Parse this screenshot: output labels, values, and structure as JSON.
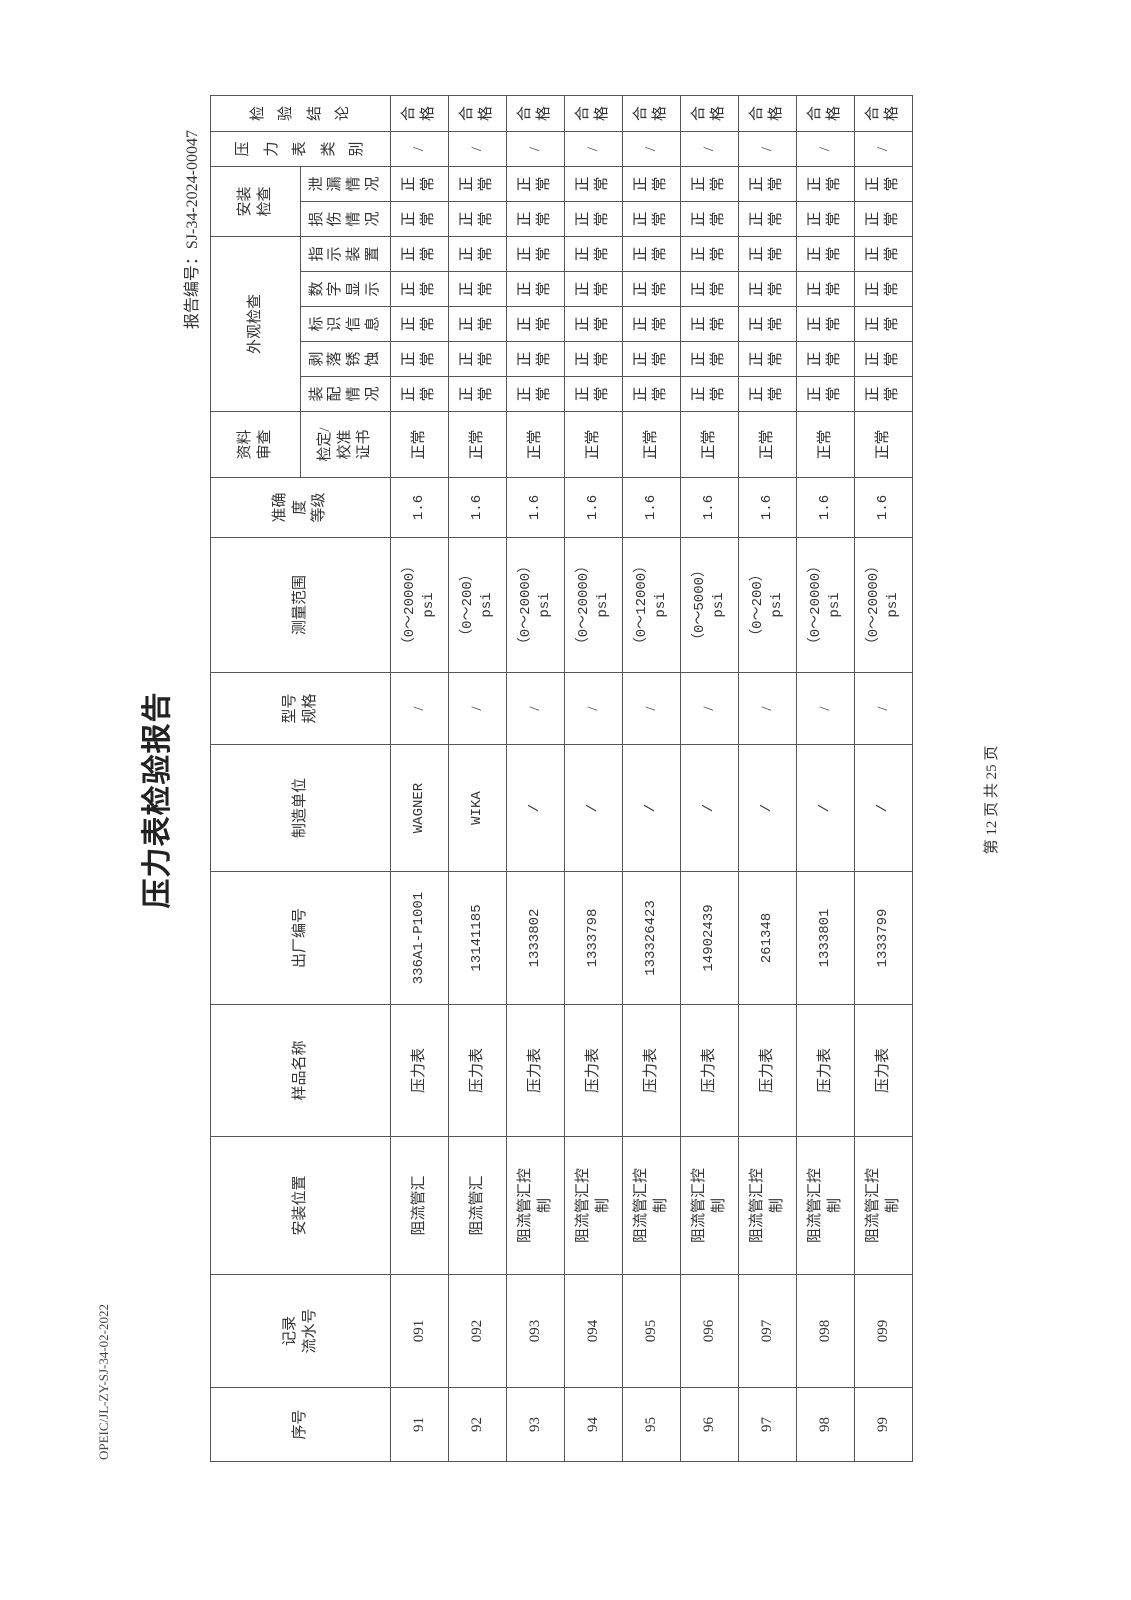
{
  "form_code": "OPEIC/JL-ZY-SJ-34-02-2022",
  "title": "压力表检验报告",
  "report_number": "报告编号：SJ-34-2024-00047",
  "footer": "第 12 页 共 25 页",
  "table": {
    "headers": {
      "seq": "序号",
      "record_no": "记录\n流水号",
      "install_location": "安装位置",
      "sample_name": "样品名称",
      "serial_no": "出厂编号",
      "manufacturer": "制造单位",
      "model": "型号\n规格",
      "range": "测量范围",
      "accuracy": "准确\n度\n等级",
      "doc_review": "资料\n审查",
      "doc_review_sub": "检定/\n校准\n证书",
      "appearance": "外观检查",
      "appearance_sub": [
        "装配情况",
        "剥落锈蚀",
        "标识信息",
        "数字显示",
        "指示装置"
      ],
      "install_check": "安装\n检查",
      "install_check_sub": [
        "损伤情况",
        "泄漏情况"
      ],
      "gauge_type": "压力表类别",
      "conclusion": "检验结论"
    },
    "rows": [
      {
        "seq": "91",
        "record_no": "091",
        "location": "阻流管汇",
        "name": "压力表",
        "serial": "336A1-P1001",
        "maker": "WAGNER",
        "model": "/",
        "range": "（0～20000）\npsi",
        "accuracy": "1.6",
        "doc": "正常",
        "app": [
          "正常",
          "正常",
          "正常",
          "正常",
          "正常"
        ],
        "inst": [
          "正常",
          "正常"
        ],
        "type": "/",
        "result": "合格"
      },
      {
        "seq": "92",
        "record_no": "092",
        "location": "阻流管汇",
        "name": "压力表",
        "serial": "13141185",
        "maker": "WIKA",
        "model": "/",
        "range": "（0～200）\npsi",
        "accuracy": "1.6",
        "doc": "正常",
        "app": [
          "正常",
          "正常",
          "正常",
          "正常",
          "正常"
        ],
        "inst": [
          "正常",
          "正常"
        ],
        "type": "/",
        "result": "合格"
      },
      {
        "seq": "93",
        "record_no": "093",
        "location": "阻流管汇控制",
        "name": "压力表",
        "serial": "1333802",
        "maker": "/",
        "model": "/",
        "range": "（0～20000）\npsi",
        "accuracy": "1.6",
        "doc": "正常",
        "app": [
          "正常",
          "正常",
          "正常",
          "正常",
          "正常"
        ],
        "inst": [
          "正常",
          "正常"
        ],
        "type": "/",
        "result": "合格"
      },
      {
        "seq": "94",
        "record_no": "094",
        "location": "阻流管汇控制",
        "name": "压力表",
        "serial": "1333798",
        "maker": "/",
        "model": "/",
        "range": "（0～20000）\npsi",
        "accuracy": "1.6",
        "doc": "正常",
        "app": [
          "正常",
          "正常",
          "正常",
          "正常",
          "正常"
        ],
        "inst": [
          "正常",
          "正常"
        ],
        "type": "/",
        "result": "合格"
      },
      {
        "seq": "95",
        "record_no": "095",
        "location": "阻流管汇控制",
        "name": "压力表",
        "serial": "133326423",
        "maker": "/",
        "model": "/",
        "range": "（0～12000）\npsi",
        "accuracy": "1.6",
        "doc": "正常",
        "app": [
          "正常",
          "正常",
          "正常",
          "正常",
          "正常"
        ],
        "inst": [
          "正常",
          "正常"
        ],
        "type": "/",
        "result": "合格"
      },
      {
        "seq": "96",
        "record_no": "096",
        "location": "阻流管汇控制",
        "name": "压力表",
        "serial": "14902439",
        "maker": "/",
        "model": "/",
        "range": "（0～5000）\npsi",
        "accuracy": "1.6",
        "doc": "正常",
        "app": [
          "正常",
          "正常",
          "正常",
          "正常",
          "正常"
        ],
        "inst": [
          "正常",
          "正常"
        ],
        "type": "/",
        "result": "合格"
      },
      {
        "seq": "97",
        "record_no": "097",
        "location": "阻流管汇控制",
        "name": "压力表",
        "serial": "261348",
        "maker": "/",
        "model": "/",
        "range": "（0～200）\npsi",
        "accuracy": "1.6",
        "doc": "正常",
        "app": [
          "正常",
          "正常",
          "正常",
          "正常",
          "正常"
        ],
        "inst": [
          "正常",
          "正常"
        ],
        "type": "/",
        "result": "合格"
      },
      {
        "seq": "98",
        "record_no": "098",
        "location": "阻流管汇控制",
        "name": "压力表",
        "serial": "1333801",
        "maker": "/",
        "model": "/",
        "range": "（0～20000）\npsi",
        "accuracy": "1.6",
        "doc": "正常",
        "app": [
          "正常",
          "正常",
          "正常",
          "正常",
          "正常"
        ],
        "inst": [
          "正常",
          "正常"
        ],
        "type": "/",
        "result": "合格"
      },
      {
        "seq": "99",
        "record_no": "099",
        "location": "阻流管汇控制",
        "name": "压力表",
        "serial": "1333799",
        "maker": "/",
        "model": "/",
        "range": "（0～20000）\npsi",
        "accuracy": "1.6",
        "doc": "正常",
        "app": [
          "正常",
          "正常",
          "正常",
          "正常",
          "正常"
        ],
        "inst": [
          "正常",
          "正常"
        ],
        "type": "/",
        "result": "合格"
      }
    ]
  }
}
